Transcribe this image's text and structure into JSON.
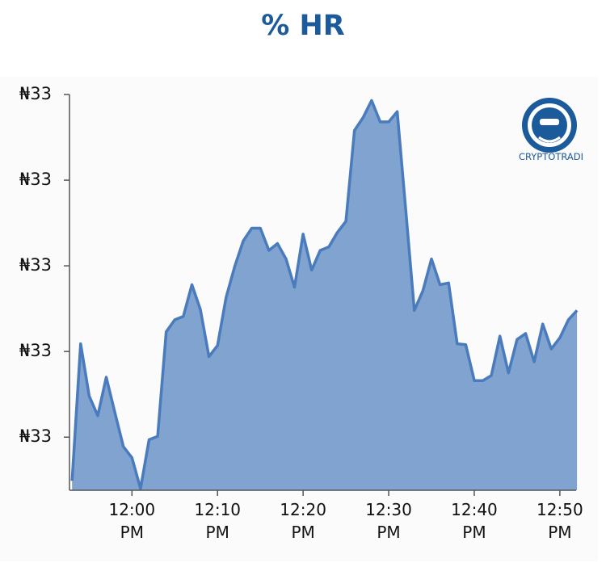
{
  "title": "% HR",
  "logo_text": "CRYPTOTRADI",
  "chart_data": {
    "type": "area",
    "x": [
      -7,
      -6,
      -5,
      -4,
      -3,
      -2,
      -1,
      0,
      1,
      2,
      3,
      4,
      5,
      6,
      7,
      8,
      9,
      10,
      11,
      12,
      13,
      14,
      15,
      16,
      17,
      18,
      19,
      20,
      21,
      22,
      23,
      24,
      25,
      26,
      27,
      28,
      29,
      30,
      31,
      32,
      33,
      34,
      35,
      36,
      37,
      38,
      39,
      40,
      41,
      42,
      43,
      44,
      45,
      46,
      47,
      48,
      49,
      50,
      51,
      52
    ],
    "values": [
      0.49,
      2.09,
      1.48,
      1.25,
      1.7,
      1.29,
      0.89,
      0.76,
      0.4,
      0.97,
      1.01,
      2.23,
      2.37,
      2.41,
      2.78,
      2.49,
      1.94,
      2.07,
      2.63,
      2.99,
      3.29,
      3.44,
      3.44,
      3.18,
      3.26,
      3.08,
      2.75,
      3.37,
      2.95,
      3.18,
      3.22,
      3.39,
      3.52,
      4.58,
      4.73,
      4.93,
      4.68,
      4.68,
      4.8,
      3.65,
      2.48,
      2.71,
      3.08,
      2.78,
      2.8,
      2.09,
      2.08,
      1.66,
      1.66,
      1.72,
      2.18,
      1.75,
      2.14,
      2.21,
      1.88,
      2.32,
      2.03,
      2.16,
      2.37,
      2.48
    ],
    "color": "#80a3cf",
    "line_color": "#4a7bbd",
    "xlim": [
      -7.3,
      51.9
    ],
    "ylim": [
      0.38,
      5.0
    ],
    "xticks": [
      {
        "value": 0,
        "label": "12:00 PM"
      },
      {
        "value": 10,
        "label": "12:10 PM"
      },
      {
        "value": 20,
        "label": "12:20 PM"
      },
      {
        "value": 30,
        "label": "12:30 PM"
      },
      {
        "value": 40,
        "label": "12:40 PM"
      },
      {
        "value": 50,
        "label": "12:50 PM"
      }
    ],
    "yticks": [
      {
        "value": 1,
        "label": "₦33"
      },
      {
        "value": 2,
        "label": "₦33"
      },
      {
        "value": 3,
        "label": "₦33"
      },
      {
        "value": 4,
        "label": "₦33"
      },
      {
        "value": 5,
        "label": "₦33"
      }
    ]
  }
}
